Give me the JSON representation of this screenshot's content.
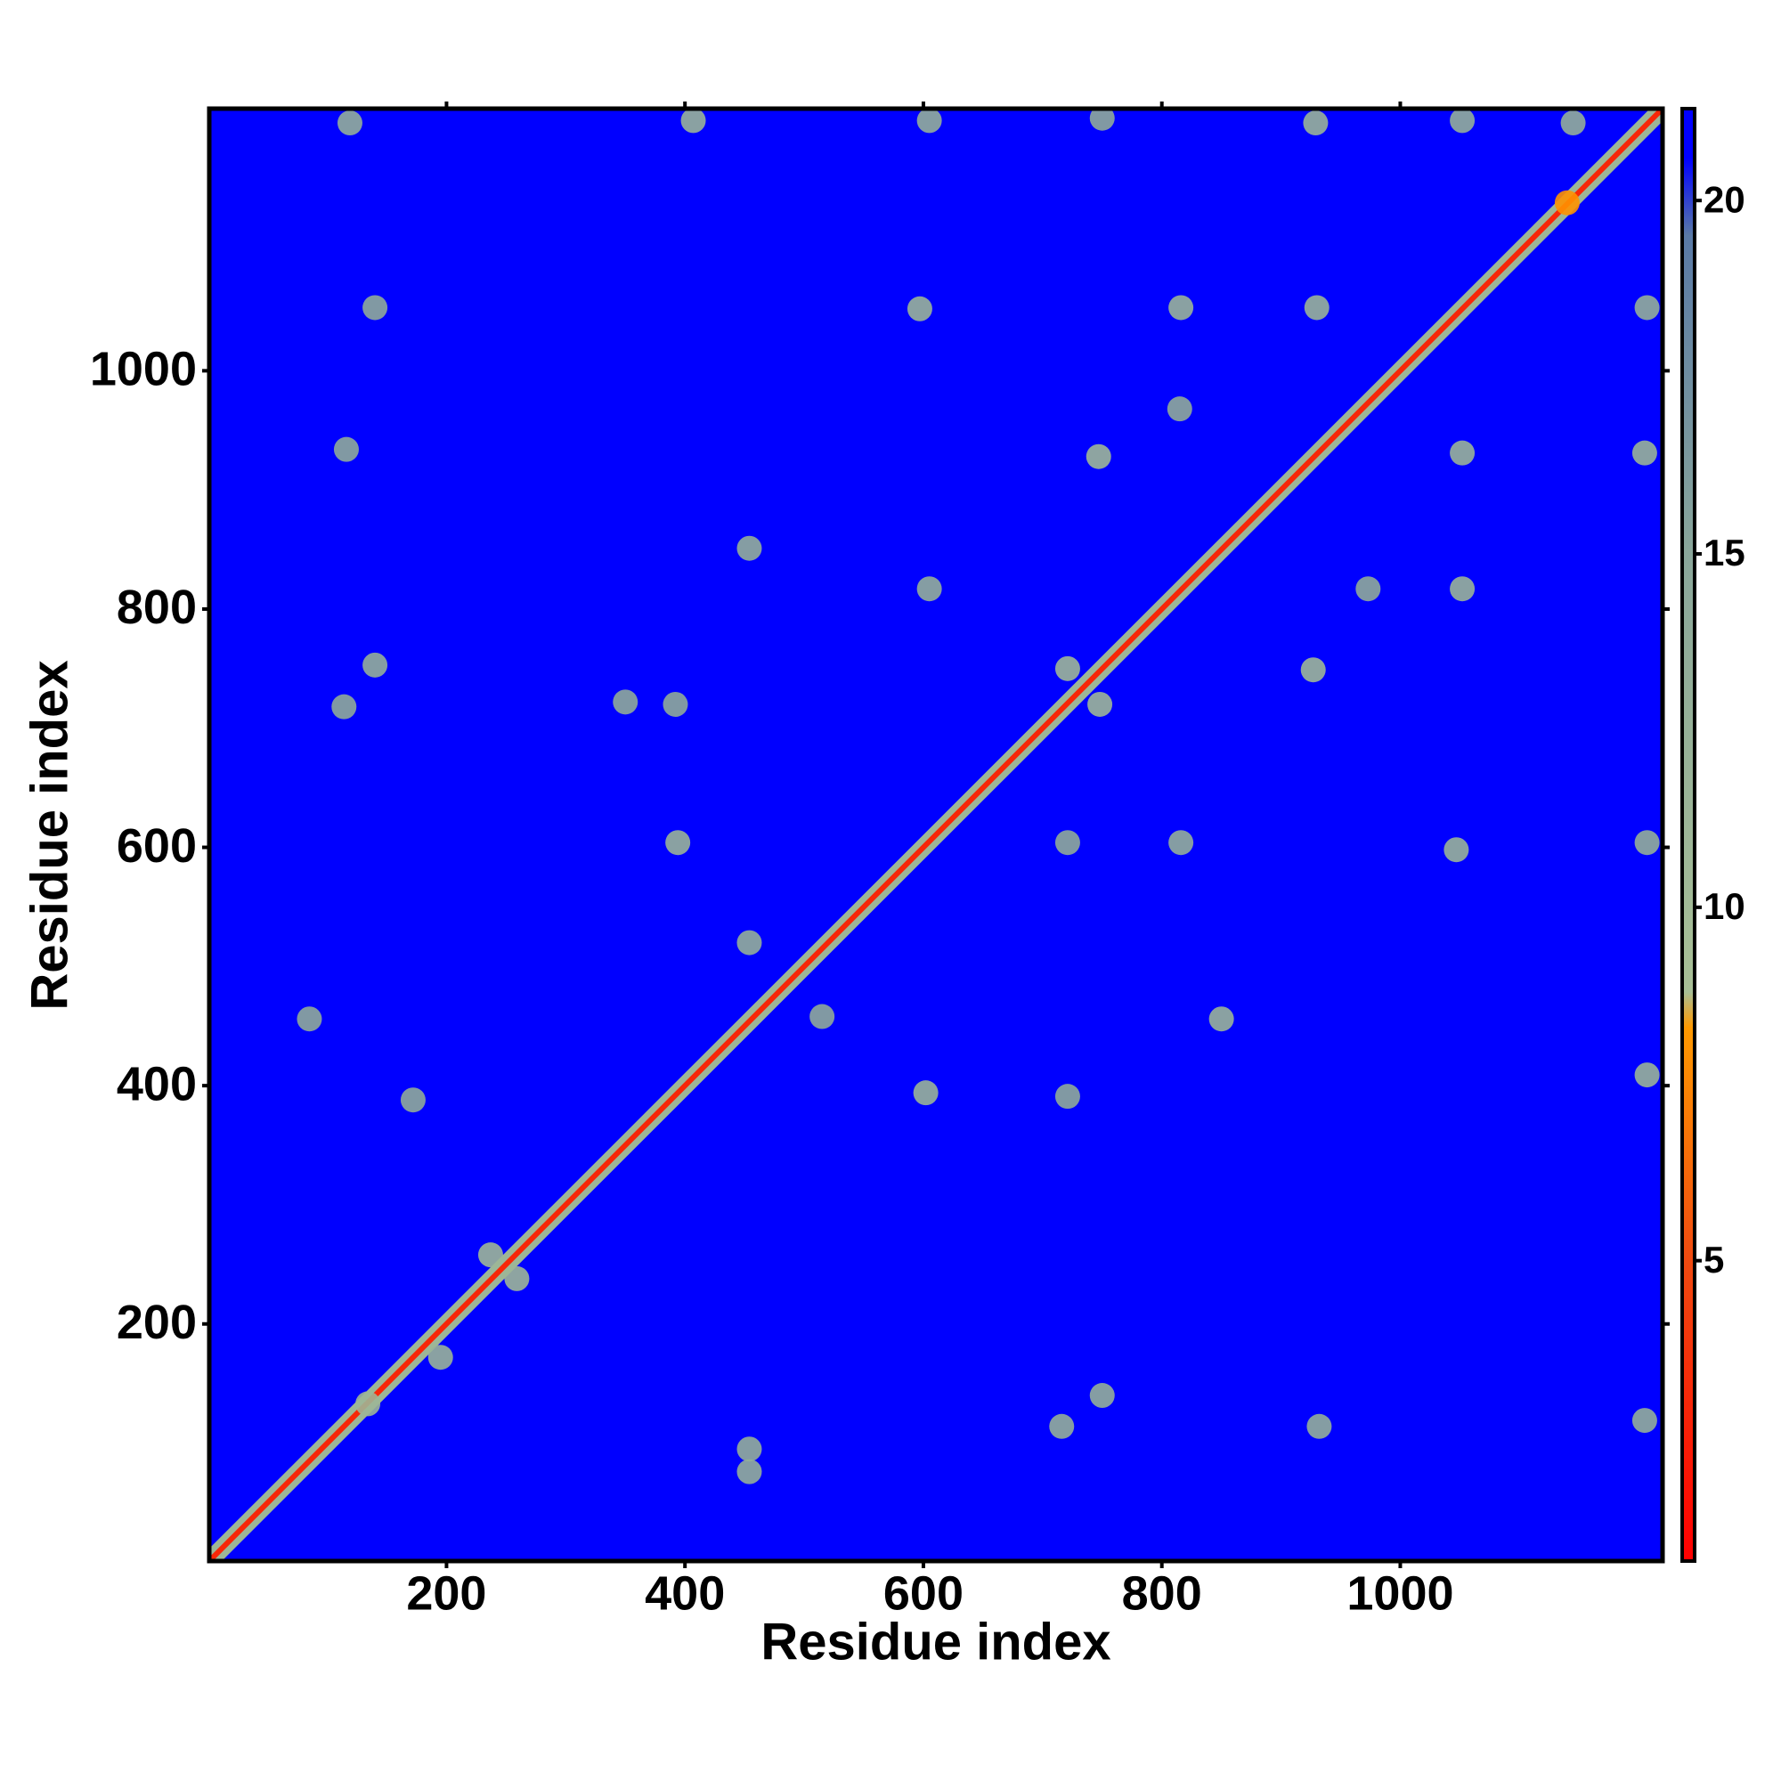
{
  "chart_data": {
    "type": "heatmap",
    "xlabel": "Residue index",
    "ylabel": "Residue index",
    "xlim": [
      1,
      1220
    ],
    "ylim": [
      1,
      1220
    ],
    "xticks": [
      200,
      400,
      600,
      800,
      1000
    ],
    "yticks": [
      200,
      400,
      600,
      800,
      1000
    ],
    "clim": [
      0.75,
      21.3
    ],
    "cticks": [
      5,
      10,
      15,
      20
    ],
    "colorscale": [
      [
        0.75,
        "#ff0000"
      ],
      [
        5,
        "#f04a10"
      ],
      [
        8.3,
        "#ff9900"
      ],
      [
        8.8,
        "#a8bf96"
      ],
      [
        15,
        "#8aa69a"
      ],
      [
        19.5,
        "#5a7aa6"
      ],
      [
        20.6,
        "#0000ff"
      ],
      [
        21.3,
        "#0000ff"
      ]
    ],
    "background_value": 21,
    "diagonal": {
      "start": 1,
      "end": 1220,
      "core_value": 3,
      "edge_value": 11
    },
    "contacts": {
      "x": [
        119,
        407,
        605,
        750,
        929,
        1052,
        1145,
        140,
        597,
        816,
        930,
        1207,
        815,
        747,
        116,
        1052,
        1205,
        454,
        605,
        973,
        1052,
        140,
        114,
        350,
        392,
        721,
        748,
        927,
        394,
        721,
        816,
        1047,
        1207,
        454,
        85,
        515,
        850,
        602,
        172,
        721,
        1207,
        237,
        259,
        134,
        195,
        454,
        454,
        750,
        716,
        932,
        1205,
        1140
      ],
      "y": [
        1208,
        1210,
        1210,
        1212,
        1208,
        1210,
        1208,
        1053,
        1052,
        1053,
        1053,
        1053,
        968,
        928,
        934,
        931,
        931,
        851,
        817,
        817,
        817,
        753,
        718,
        722,
        720,
        750,
        720,
        749,
        604,
        604,
        604,
        598,
        604,
        520,
        456,
        458,
        456,
        394,
        388,
        391,
        409,
        258,
        238,
        133,
        172,
        95,
        76,
        140,
        114,
        114,
        119,
        1141
      ],
      "values": [
        13,
        12,
        13,
        14,
        12,
        13,
        13,
        14,
        12,
        12,
        12,
        13,
        14,
        11,
        14,
        12,
        12,
        13,
        13,
        14,
        12,
        13,
        14,
        14,
        14,
        11,
        11,
        11,
        12,
        14,
        13,
        12,
        13,
        13,
        14,
        14,
        12,
        12,
        14,
        14,
        12,
        11,
        11,
        11,
        12,
        13,
        13,
        13,
        13,
        13,
        13,
        8
      ]
    }
  }
}
